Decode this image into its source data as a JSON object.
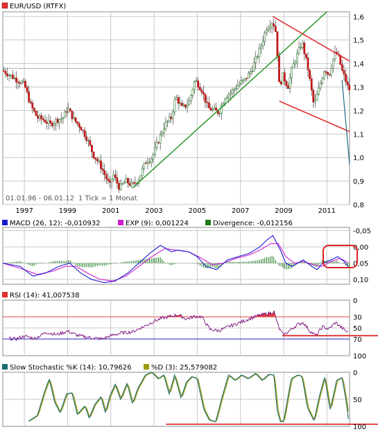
{
  "colors": {
    "grid": "#c8c8c8",
    "frame": "#8a8a8a",
    "up_candle": "#2f7d2f",
    "down_candle": "#c01818",
    "trend_green": "#1a8f1a",
    "channel_red": "#e03030",
    "projection": "#1a6b8a",
    "macd": "#1a1ad0",
    "exp": "#d020d0",
    "divergence": "#1a7a1a",
    "rsi": "#7a0a7a",
    "rsi_hi_line": "#e04040",
    "rsi_lo_line": "#2020c0",
    "stoch_k": "#1a6b6b",
    "stoch_d": "#9a9a10",
    "support_red": "#e03030",
    "circle_red": "#e02020"
  },
  "price_panel": {
    "legend": "EUR/USD (RTFX)",
    "date_range": "01.01.96 - 06.01.12",
    "interval": "1 Tick = 1 Monat",
    "y_ticks": [
      "0,8",
      "0,9",
      "1,0",
      "1,1",
      "1,2",
      "1,3",
      "1,4",
      "1,5",
      "1,6"
    ],
    "x_ticks": [
      "1997",
      "1999",
      "2001",
      "2003",
      "2005",
      "2007",
      "2009",
      "2011"
    ]
  },
  "macd_panel": {
    "legend_macd": "MACD (26, 12): -0,010932",
    "legend_exp": "EXP (9): 0,001224",
    "legend_div": "Divergence: -0,012156",
    "y_ticks": [
      "0,10",
      "0,05",
      "0,00",
      "-0,05"
    ]
  },
  "rsi_panel": {
    "legend": "RSI (14): 41,007538",
    "y_ticks": [
      "100",
      "70",
      "50",
      "30",
      "0"
    ]
  },
  "stoch_panel": {
    "legend_k": "Slow Stochastic %K (14): 10,79626",
    "legend_d": "%D (3): 25,579082",
    "y_ticks": [
      "100",
      "50",
      "0"
    ]
  },
  "chart_data": [
    {
      "type": "candlestick",
      "title": "EUR/USD (RTFX)",
      "x_start": 1996.0,
      "x_end": 2012.05,
      "ylim": [
        0.8,
        1.62
      ],
      "y_ticks": [
        0.8,
        0.9,
        1.0,
        1.1,
        1.2,
        1.3,
        1.4,
        1.5,
        1.6
      ],
      "x_ticks": [
        1997,
        1999,
        2001,
        2003,
        2005,
        2007,
        2009,
        2011
      ],
      "close_anchors": [
        [
          1996.0,
          1.37
        ],
        [
          1996.5,
          1.34
        ],
        [
          1997.0,
          1.31
        ],
        [
          1997.3,
          1.22
        ],
        [
          1997.6,
          1.17
        ],
        [
          1997.9,
          1.16
        ],
        [
          1998.2,
          1.14
        ],
        [
          1998.5,
          1.16
        ],
        [
          1998.8,
          1.17
        ],
        [
          1999.0,
          1.21
        ],
        [
          1999.3,
          1.16
        ],
        [
          1999.6,
          1.13
        ],
        [
          1999.9,
          1.08
        ],
        [
          2000.2,
          1.01
        ],
        [
          2000.5,
          0.97
        ],
        [
          2000.8,
          0.91
        ],
        [
          2000.95,
          0.88
        ],
        [
          2001.1,
          0.93
        ],
        [
          2001.4,
          0.87
        ],
        [
          2001.7,
          0.9
        ],
        [
          2002.0,
          0.88
        ],
        [
          2002.3,
          0.91
        ],
        [
          2002.6,
          0.98
        ],
        [
          2002.9,
          1.0
        ],
        [
          2003.2,
          1.07
        ],
        [
          2003.5,
          1.14
        ],
        [
          2003.8,
          1.17
        ],
        [
          2004.0,
          1.26
        ],
        [
          2004.3,
          1.21
        ],
        [
          2004.6,
          1.23
        ],
        [
          2004.9,
          1.33
        ],
        [
          2005.2,
          1.29
        ],
        [
          2005.5,
          1.21
        ],
        [
          2005.8,
          1.2
        ],
        [
          2006.0,
          1.19
        ],
        [
          2006.3,
          1.26
        ],
        [
          2006.6,
          1.28
        ],
        [
          2006.9,
          1.31
        ],
        [
          2007.2,
          1.33
        ],
        [
          2007.5,
          1.37
        ],
        [
          2007.9,
          1.46
        ],
        [
          2008.2,
          1.55
        ],
        [
          2008.5,
          1.58
        ],
        [
          2008.65,
          1.53
        ],
        [
          2008.8,
          1.3
        ],
        [
          2008.95,
          1.35
        ],
        [
          2009.2,
          1.3
        ],
        [
          2009.4,
          1.38
        ],
        [
          2009.6,
          1.43
        ],
        [
          2009.85,
          1.49
        ],
        [
          2010.1,
          1.39
        ],
        [
          2010.4,
          1.22
        ],
        [
          2010.6,
          1.28
        ],
        [
          2010.9,
          1.38
        ],
        [
          2011.1,
          1.35
        ],
        [
          2011.35,
          1.44
        ],
        [
          2011.5,
          1.44
        ],
        [
          2011.7,
          1.37
        ],
        [
          2011.9,
          1.32
        ],
        [
          2012.0,
          1.29
        ]
      ],
      "overlays": {
        "uptrend_line": [
          [
            2002.0,
            0.87
          ],
          [
            2011.0,
            1.62
          ]
        ],
        "channel_upper": [
          [
            2008.5,
            1.6
          ],
          [
            2012.05,
            1.41
          ]
        ],
        "channel_lower": [
          [
            2008.8,
            1.24
          ],
          [
            2012.05,
            1.11
          ]
        ],
        "projection_line": [
          [
            2011.7,
            1.33
          ],
          [
            2012.05,
            0.97
          ]
        ]
      }
    },
    {
      "type": "line",
      "title": "MACD (26, 12)",
      "ylim": [
        -0.065,
        0.11
      ],
      "y_ticks": [
        -0.05,
        0.0,
        0.05,
        0.1
      ],
      "series": [
        {
          "name": "MACD (26, 12)",
          "anchors": [
            [
              1996.0,
              0.0
            ],
            [
              1996.8,
              -0.01
            ],
            [
              1997.4,
              -0.04
            ],
            [
              1998.0,
              -0.03
            ],
            [
              1998.6,
              -0.01
            ],
            [
              1999.1,
              0.0
            ],
            [
              1999.6,
              -0.03
            ],
            [
              2000.1,
              -0.05
            ],
            [
              2000.7,
              -0.06
            ],
            [
              2001.2,
              -0.055
            ],
            [
              2001.8,
              -0.03
            ],
            [
              2002.3,
              0.0
            ],
            [
              2002.8,
              0.03
            ],
            [
              2003.3,
              0.055
            ],
            [
              2003.8,
              0.035
            ],
            [
              2004.1,
              0.04
            ],
            [
              2004.6,
              0.035
            ],
            [
              2005.0,
              0.02
            ],
            [
              2005.4,
              -0.01
            ],
            [
              2005.9,
              -0.02
            ],
            [
              2006.4,
              0.01
            ],
            [
              2006.9,
              0.02
            ],
            [
              2007.4,
              0.03
            ],
            [
              2007.9,
              0.05
            ],
            [
              2008.2,
              0.07
            ],
            [
              2008.5,
              0.085
            ],
            [
              2008.85,
              0.04
            ],
            [
              2009.1,
              0.0
            ],
            [
              2009.4,
              -0.01
            ],
            [
              2009.9,
              0.01
            ],
            [
              2010.3,
              -0.01
            ],
            [
              2010.55,
              -0.02
            ],
            [
              2010.8,
              0.0
            ],
            [
              2011.2,
              0.01
            ],
            [
              2011.5,
              0.02
            ],
            [
              2011.8,
              0.005
            ],
            [
              2012.0,
              -0.011
            ]
          ]
        },
        {
          "name": "EXP (9)",
          "anchors": [
            [
              1996.0,
              0.0
            ],
            [
              1997.0,
              -0.02
            ],
            [
              1997.6,
              -0.035
            ],
            [
              1998.3,
              -0.025
            ],
            [
              1998.9,
              -0.01
            ],
            [
              1999.4,
              -0.01
            ],
            [
              1999.9,
              -0.03
            ],
            [
              2000.5,
              -0.05
            ],
            [
              2001.1,
              -0.055
            ],
            [
              2001.7,
              -0.04
            ],
            [
              2002.3,
              -0.01
            ],
            [
              2002.9,
              0.02
            ],
            [
              2003.5,
              0.045
            ],
            [
              2004.0,
              0.04
            ],
            [
              2004.6,
              0.035
            ],
            [
              2005.2,
              0.015
            ],
            [
              2005.7,
              -0.005
            ],
            [
              2006.2,
              0.0
            ],
            [
              2006.8,
              0.015
            ],
            [
              2007.4,
              0.025
            ],
            [
              2007.9,
              0.04
            ],
            [
              2008.4,
              0.06
            ],
            [
              2008.75,
              0.06
            ],
            [
              2009.1,
              0.02
            ],
            [
              2009.5,
              0.0
            ],
            [
              2009.9,
              0.005
            ],
            [
              2010.4,
              -0.005
            ],
            [
              2010.75,
              -0.01
            ],
            [
              2011.2,
              0.005
            ],
            [
              2011.6,
              0.015
            ],
            [
              2012.0,
              0.0012
            ]
          ]
        },
        {
          "name": "Divergence",
          "style": "bars",
          "derived_as": "MACD minus EXP"
        }
      ]
    },
    {
      "type": "line",
      "title": "RSI (14)",
      "ylim": [
        0,
        100
      ],
      "y_ticks": [
        0,
        30,
        50,
        70,
        100
      ],
      "reference_lines": [
        30,
        70
      ],
      "series": [
        {
          "name": "RSI (14)",
          "anchors": [
            [
              1996.3,
              31
            ],
            [
              1996.6,
              30
            ],
            [
              1997.0,
              35
            ],
            [
              1997.5,
              31
            ],
            [
              1998.0,
              42
            ],
            [
              1998.5,
              38
            ],
            [
              1999.0,
              44
            ],
            [
              1999.5,
              36
            ],
            [
              2000.0,
              33
            ],
            [
              2000.6,
              30
            ],
            [
              2001.0,
              36
            ],
            [
              2001.5,
              41
            ],
            [
              2002.0,
              43
            ],
            [
              2002.5,
              52
            ],
            [
              2003.0,
              62
            ],
            [
              2003.4,
              68
            ],
            [
              2003.8,
              71
            ],
            [
              2004.1,
              74
            ],
            [
              2004.5,
              66
            ],
            [
              2004.9,
              71
            ],
            [
              2005.2,
              70
            ],
            [
              2005.6,
              47
            ],
            [
              2006.0,
              45
            ],
            [
              2006.5,
              53
            ],
            [
              2007.0,
              60
            ],
            [
              2007.5,
              68
            ],
            [
              2007.9,
              73
            ],
            [
              2008.3,
              76
            ],
            [
              2008.55,
              79
            ],
            [
              2008.8,
              48
            ],
            [
              2009.0,
              37
            ],
            [
              2009.3,
              46
            ],
            [
              2009.6,
              55
            ],
            [
              2009.9,
              60
            ],
            [
              2010.2,
              45
            ],
            [
              2010.5,
              36
            ],
            [
              2010.8,
              52
            ],
            [
              2011.1,
              48
            ],
            [
              2011.4,
              60
            ],
            [
              2011.7,
              50
            ],
            [
              2012.0,
              41
            ]
          ]
        }
      ],
      "support_line": [
        [
          2008.95,
          36
        ],
        [
          2012.05,
          36
        ]
      ]
    },
    {
      "type": "line",
      "title": "Slow Stochastic %K (14)",
      "ylim": [
        0,
        100
      ],
      "y_ticks": [
        0,
        50,
        100
      ],
      "series": [
        {
          "name": "Slow Stochastic %K (14)",
          "anchors": [
            [
              1997.2,
              10
            ],
            [
              1997.6,
              20
            ],
            [
              1997.9,
              60
            ],
            [
              1998.15,
              88
            ],
            [
              1998.4,
              45
            ],
            [
              1998.65,
              25
            ],
            [
              1998.95,
              60
            ],
            [
              1999.2,
              62
            ],
            [
              1999.45,
              22
            ],
            [
              1999.8,
              38
            ],
            [
              2000.0,
              15
            ],
            [
              2000.25,
              40
            ],
            [
              2000.55,
              55
            ],
            [
              2000.75,
              25
            ],
            [
              2000.95,
              55
            ],
            [
              2001.2,
              78
            ],
            [
              2001.45,
              50
            ],
            [
              2001.75,
              80
            ],
            [
              2002.0,
              42
            ],
            [
              2002.25,
              70
            ],
            [
              2002.6,
              95
            ],
            [
              2002.9,
              100
            ],
            [
              2003.2,
              88
            ],
            [
              2003.45,
              95
            ],
            [
              2003.7,
              60
            ],
            [
              2003.95,
              95
            ],
            [
              2004.25,
              52
            ],
            [
              2004.5,
              82
            ],
            [
              2004.75,
              92
            ],
            [
              2005.0,
              88
            ],
            [
              2005.3,
              32
            ],
            [
              2005.55,
              12
            ],
            [
              2005.85,
              8
            ],
            [
              2006.15,
              55
            ],
            [
              2006.45,
              95
            ],
            [
              2006.75,
              85
            ],
            [
              2007.05,
              95
            ],
            [
              2007.35,
              88
            ],
            [
              2007.7,
              98
            ],
            [
              2008.0,
              85
            ],
            [
              2008.3,
              96
            ],
            [
              2008.55,
              95
            ],
            [
              2008.7,
              30
            ],
            [
              2008.85,
              8
            ],
            [
              2009.0,
              10
            ],
            [
              2009.35,
              88
            ],
            [
              2009.65,
              95
            ],
            [
              2009.85,
              92
            ],
            [
              2010.1,
              35
            ],
            [
              2010.4,
              10
            ],
            [
              2010.65,
              55
            ],
            [
              2010.9,
              92
            ],
            [
              2011.15,
              30
            ],
            [
              2011.45,
              85
            ],
            [
              2011.7,
              90
            ],
            [
              2011.9,
              45
            ],
            [
              2012.0,
              11
            ]
          ]
        },
        {
          "name": "%D (3)",
          "derived_as": "3-period average of %K"
        }
      ],
      "support_line": [
        [
          2003.55,
          4
        ],
        [
          2012.05,
          4
        ]
      ]
    }
  ]
}
